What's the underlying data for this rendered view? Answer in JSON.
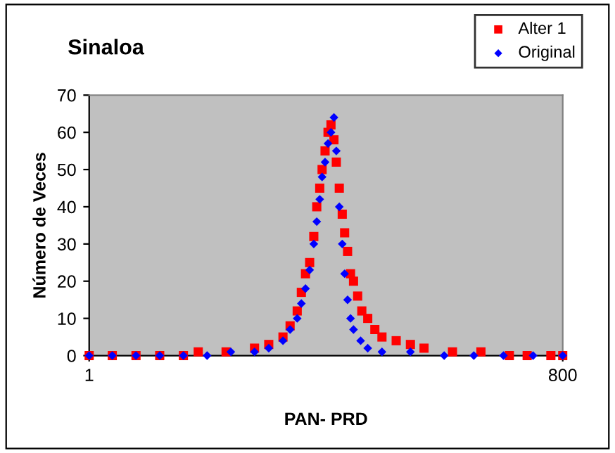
{
  "chart_data": {
    "type": "scatter",
    "title": "Sinaloa",
    "xlabel": "PAN- PRD",
    "ylabel": "Número de Veces",
    "xlim": [
      1,
      800
    ],
    "xticks": [
      1,
      800
    ],
    "ylim": [
      0,
      70
    ],
    "yticks": [
      0,
      10,
      20,
      30,
      40,
      50,
      60,
      70
    ],
    "grid": false,
    "legend": "top right",
    "series": [
      {
        "name": "Alter 1",
        "color": "#ff0000",
        "marker": "square",
        "x": [
          1,
          40,
          80,
          120,
          160,
          185,
          232,
          280,
          304,
          328,
          340,
          352,
          359,
          366,
          373,
          380,
          385,
          390,
          394,
          399,
          404,
          409,
          414,
          418,
          423,
          428,
          432,
          437,
          442,
          447,
          454,
          461,
          471,
          483,
          495,
          519,
          543,
          566,
          614,
          662,
          710,
          740,
          780,
          800
        ],
        "values": [
          0,
          0,
          0,
          0,
          0,
          1,
          1,
          2,
          3,
          5,
          8,
          12,
          17,
          22,
          25,
          32,
          40,
          45,
          50,
          55,
          60,
          62,
          58,
          52,
          45,
          38,
          33,
          28,
          22,
          20,
          16,
          12,
          10,
          7,
          5,
          4,
          3,
          2,
          1,
          1,
          0,
          0,
          0,
          0
        ]
      },
      {
        "name": "Original",
        "color": "#0000ff",
        "marker": "diamond",
        "x": [
          1,
          40,
          80,
          120,
          160,
          200,
          240,
          280,
          304,
          328,
          340,
          352,
          359,
          366,
          373,
          380,
          385,
          390,
          394,
          399,
          404,
          409,
          414,
          418,
          423,
          428,
          432,
          437,
          442,
          447,
          459,
          471,
          495,
          543,
          600,
          650,
          700,
          750,
          800
        ],
        "values": [
          0,
          0,
          0,
          0,
          0,
          0,
          1,
          1,
          2,
          4,
          7,
          10,
          14,
          18,
          23,
          30,
          36,
          42,
          48,
          52,
          57,
          60,
          64,
          55,
          40,
          30,
          22,
          15,
          10,
          7,
          4,
          2,
          1,
          1,
          0,
          0,
          0,
          0,
          0
        ]
      }
    ]
  }
}
